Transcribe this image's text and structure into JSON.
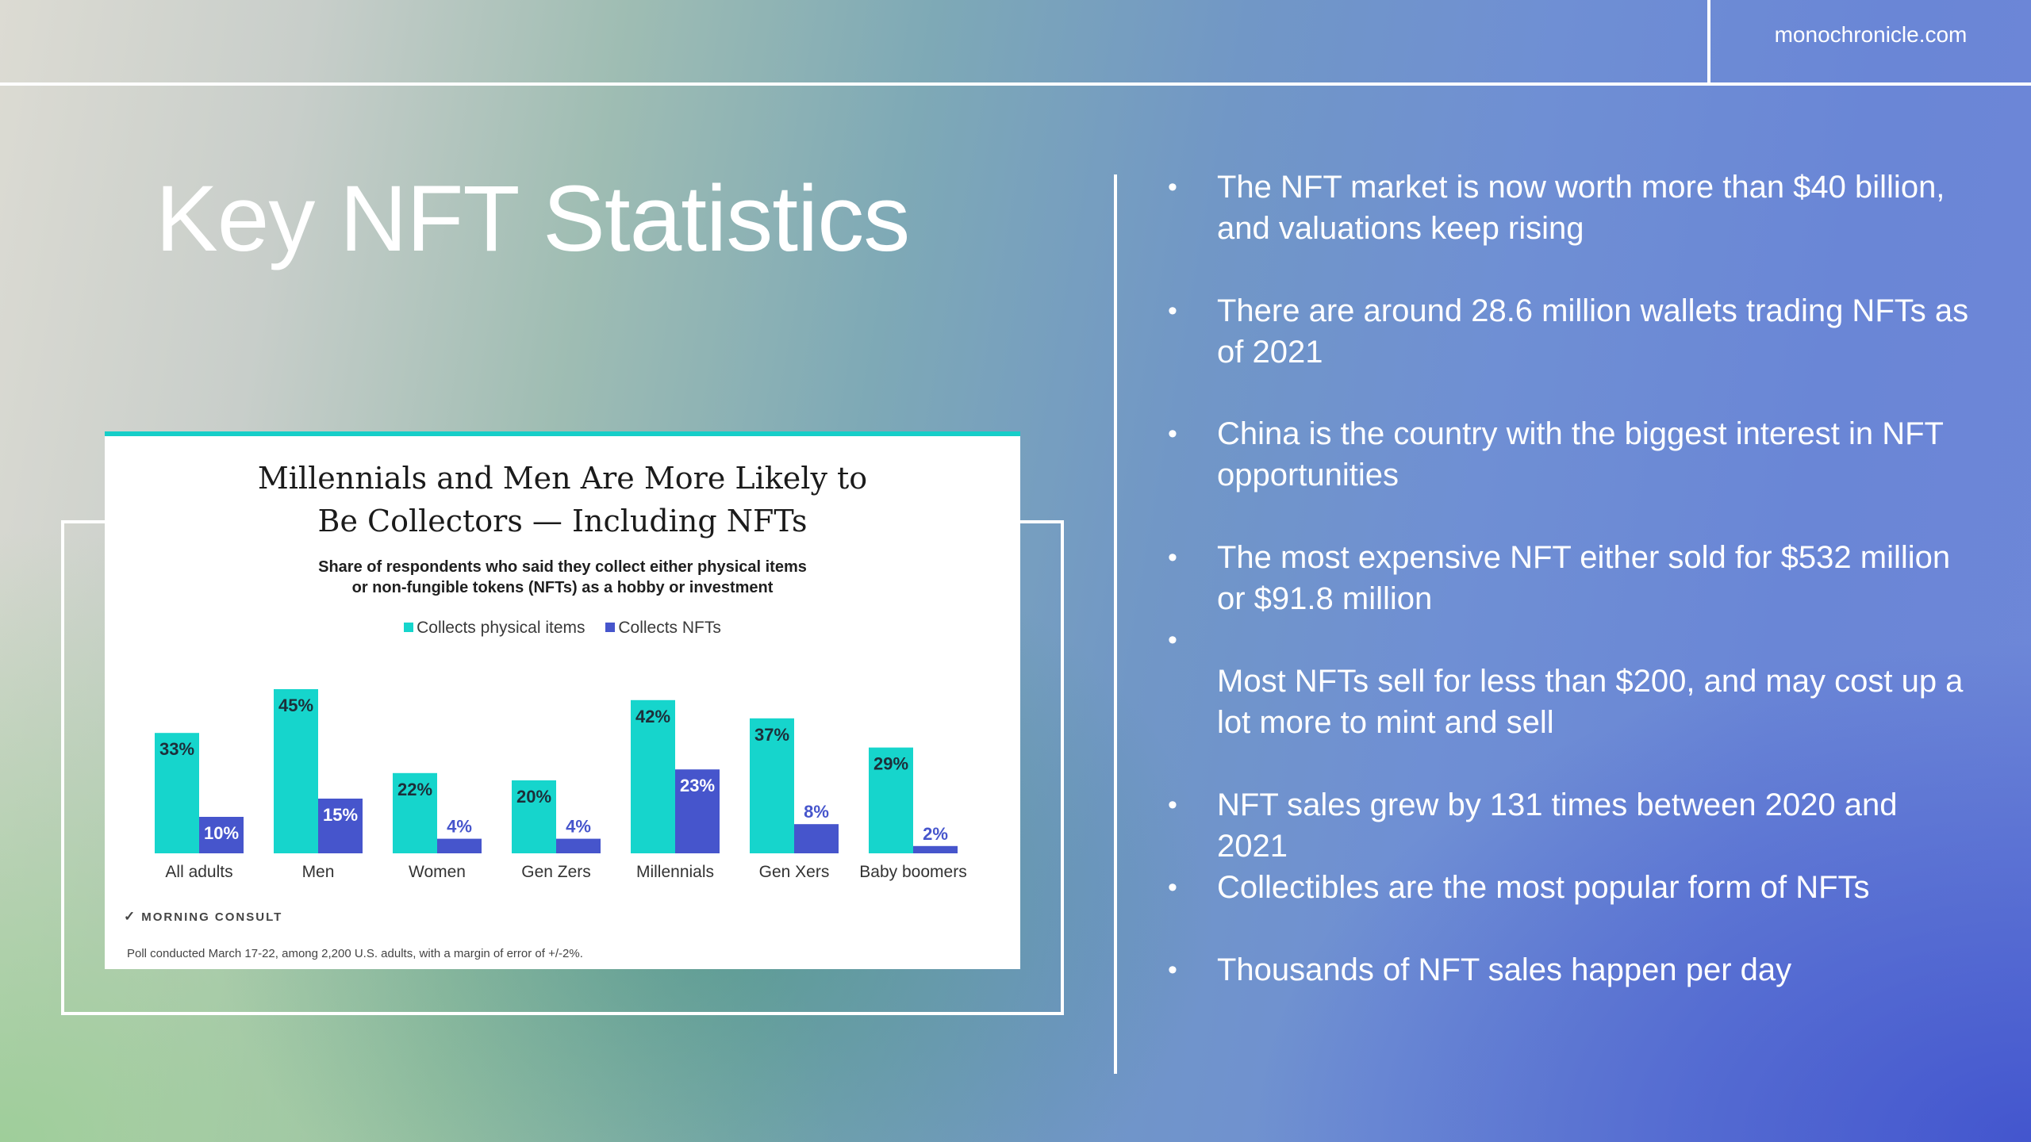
{
  "header": {
    "site": "monochronicle.com"
  },
  "slide": {
    "title": "Key NFT Statistics"
  },
  "card": {
    "title_line1": "Millennials and Men Are More Likely to",
    "title_line2": "Be Collectors — Including NFTs",
    "subtitle_line1": "Share of respondents who said they collect either physical items",
    "subtitle_line2": "or non-fungible tokens (NFTs) as a hobby or investment",
    "source_logo": "MORNING CONSULT",
    "footnote": "Poll conducted March 17-22, among 2,200 U.S. adults, with a margin of error of +/-2%."
  },
  "chart_data": {
    "type": "bar",
    "title": "Millennials and Men Are More Likely to Be Collectors — Including NFTs",
    "subtitle": "Share of respondents who said they collect either physical items or non-fungible tokens (NFTs) as a hobby or investment",
    "categories": [
      "All adults",
      "Men",
      "Women",
      "Gen Zers",
      "Millennials",
      "Gen Xers",
      "Baby boomers"
    ],
    "series": [
      {
        "name": "Collects physical items",
        "values": [
          33,
          45,
          22,
          20,
          42,
          37,
          29
        ],
        "color": "#16d5cc"
      },
      {
        "name": "Collects NFTs",
        "values": [
          10,
          15,
          4,
          4,
          23,
          8,
          2
        ],
        "color": "#4655cc"
      }
    ],
    "value_suffix": "%",
    "ylim": [
      0,
      50
    ],
    "grid": false,
    "legend_position": "top-center"
  },
  "bullets": [
    {
      "lines": [
        "The NFT market is now worth more than $40 billion,",
        "and valuations keep rising"
      ]
    },
    {
      "lines": [
        "There are around 28.6 million wallets trading NFTs as",
        "of 2021"
      ]
    },
    {
      "lines": [
        "China is the country with the biggest interest in NFT",
        "opportunities"
      ]
    },
    {
      "lines": [
        "The most expensive NFT either sold for $532 million",
        "or $91.8 million"
      ]
    },
    {
      "lines": [
        "",
        "Most NFTs sell for less than $200, and may cost up a",
        "lot more to mint and sell"
      ]
    },
    {
      "lines": [
        "NFT sales grew by 131 times between 2020 and 2021"
      ]
    },
    {
      "lines": [
        "Collectibles are the most popular form of NFTs"
      ]
    },
    {
      "lines": [
        "Thousands of NFT sales happen per day"
      ]
    }
  ]
}
